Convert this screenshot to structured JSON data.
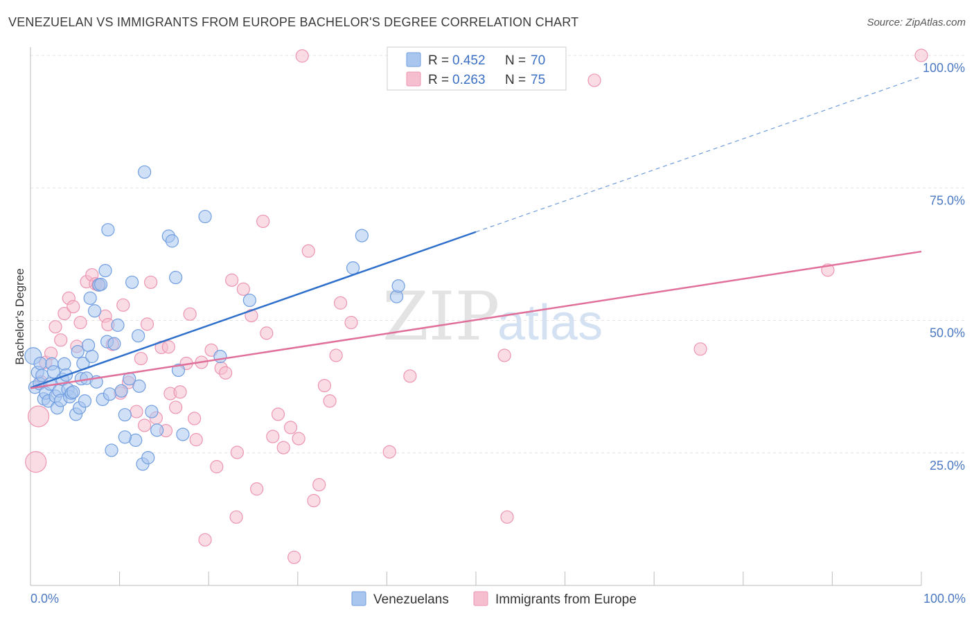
{
  "header": {
    "title": "VENEZUELAN VS IMMIGRANTS FROM EUROPE BACHELOR'S DEGREE CORRELATION CHART",
    "source": "Source: ZipAtlas.com"
  },
  "watermark": {
    "zip": "ZIP",
    "atlas": "atlas"
  },
  "legend_top": {
    "r_label": "R = ",
    "n_label": "N = ",
    "items": [
      {
        "r": "0.452",
        "n": "70"
      },
      {
        "r": "0.263",
        "n": "75"
      }
    ]
  },
  "legend_bottom": [
    "Venezuelans",
    "Immigrants from Europe"
  ],
  "colors": {
    "blue_fill": "#a9c6ee",
    "blue_stroke": "#6f9de0",
    "blue_line": "#2f6fcc",
    "pink_fill": "#f6bfd0",
    "pink_stroke": "#ec94b2",
    "pink_line": "#e0709a",
    "grid": "#e3e3e3",
    "tick_text": "#4a78c2"
  },
  "chart_data": {
    "type": "scatter",
    "ylabel": "Bachelor's Degree",
    "xlim": [
      0,
      100
    ],
    "ylim": [
      0,
      100
    ],
    "x_tick_labels": [
      "0.0%",
      "100.0%"
    ],
    "y_ticks": [
      {
        "value": 25,
        "label": "25.0%"
      },
      {
        "value": 50,
        "label": "50.0%"
      },
      {
        "value": 75,
        "label": "75.0%"
      },
      {
        "value": 100,
        "label": "100.0%"
      }
    ],
    "grid": "horizontal dashed",
    "series": [
      {
        "name": "Venezuelans",
        "r": 0.452,
        "n": 70,
        "trend": {
          "x": [
            0,
            50
          ],
          "y": [
            37.3,
            66.7
          ],
          "extend_to_x": 100,
          "extend_to_y": 96
        },
        "points": [
          [
            0.3,
            43.3
          ],
          [
            0.5,
            37.4
          ],
          [
            0.8,
            40.2
          ],
          [
            1.0,
            38.1
          ],
          [
            1.1,
            41.9
          ],
          [
            1.3,
            39.6
          ],
          [
            1.5,
            35.2
          ],
          [
            1.7,
            36.3
          ],
          [
            2.0,
            34.8
          ],
          [
            2.2,
            38.0
          ],
          [
            2.4,
            41.8
          ],
          [
            2.6,
            40.3
          ],
          [
            2.8,
            35.7
          ],
          [
            3.0,
            33.5
          ],
          [
            3.2,
            36.7
          ],
          [
            3.4,
            34.9
          ],
          [
            3.6,
            38.9
          ],
          [
            3.8,
            41.8
          ],
          [
            4.0,
            39.7
          ],
          [
            4.2,
            37.0
          ],
          [
            4.4,
            35.6
          ],
          [
            4.6,
            36.3
          ],
          [
            4.8,
            36.5
          ],
          [
            5.1,
            32.3
          ],
          [
            5.3,
            44.1
          ],
          [
            5.5,
            33.5
          ],
          [
            5.7,
            39.0
          ],
          [
            5.9,
            41.9
          ],
          [
            6.1,
            34.8
          ],
          [
            6.3,
            39.1
          ],
          [
            6.5,
            45.3
          ],
          [
            6.7,
            54.2
          ],
          [
            6.9,
            43.2
          ],
          [
            7.2,
            51.8
          ],
          [
            7.4,
            38.4
          ],
          [
            7.7,
            56.7
          ],
          [
            7.9,
            56.8
          ],
          [
            8.1,
            35.1
          ],
          [
            8.4,
            59.4
          ],
          [
            8.6,
            46.0
          ],
          [
            8.9,
            36.1
          ],
          [
            9.1,
            25.5
          ],
          [
            9.4,
            45.6
          ],
          [
            9.8,
            49.1
          ],
          [
            10.2,
            36.7
          ],
          [
            10.6,
            32.2
          ],
          [
            11.1,
            39.0
          ],
          [
            11.4,
            57.2
          ],
          [
            11.8,
            27.4
          ],
          [
            12.1,
            47.1
          ],
          [
            12.6,
            22.9
          ],
          [
            13.2,
            24.1
          ],
          [
            13.6,
            32.8
          ],
          [
            14.2,
            29.3
          ],
          [
            15.5,
            65.9
          ],
          [
            15.9,
            65.0
          ],
          [
            16.3,
            58.1
          ],
          [
            16.6,
            40.6
          ],
          [
            17.1,
            28.5
          ],
          [
            19.6,
            69.6
          ],
          [
            21.3,
            43.2
          ],
          [
            24.6,
            53.8
          ],
          [
            36.2,
            59.9
          ],
          [
            37.2,
            66.0
          ],
          [
            41.1,
            54.5
          ],
          [
            41.3,
            56.5
          ],
          [
            12.8,
            78.0
          ],
          [
            8.7,
            67.1
          ],
          [
            10.6,
            28.0
          ],
          [
            12.2,
            37.6
          ]
        ]
      },
      {
        "name": "Immigrants from Europe",
        "r": 0.263,
        "n": 75,
        "trend": {
          "x": [
            0,
            100
          ],
          "y": [
            37.2,
            63.0
          ]
        },
        "points": [
          [
            0.6,
            23.3
          ],
          [
            0.9,
            31.9
          ],
          [
            1.2,
            38.4
          ],
          [
            1.7,
            42.1
          ],
          [
            2.3,
            43.8
          ],
          [
            2.8,
            48.8
          ],
          [
            3.4,
            46.3
          ],
          [
            3.8,
            51.3
          ],
          [
            4.3,
            54.2
          ],
          [
            4.8,
            52.6
          ],
          [
            5.2,
            45.1
          ],
          [
            5.6,
            49.6
          ],
          [
            6.3,
            57.3
          ],
          [
            6.9,
            58.6
          ],
          [
            7.3,
            56.9
          ],
          [
            7.6,
            56.7
          ],
          [
            8.4,
            50.8
          ],
          [
            8.7,
            49.2
          ],
          [
            9.2,
            45.5
          ],
          [
            10.1,
            36.3
          ],
          [
            10.4,
            52.9
          ],
          [
            11.0,
            38.3
          ],
          [
            11.9,
            32.8
          ],
          [
            12.4,
            42.8
          ],
          [
            12.8,
            30.2
          ],
          [
            13.1,
            49.3
          ],
          [
            13.5,
            57.2
          ],
          [
            14.1,
            31.6
          ],
          [
            14.7,
            44.9
          ],
          [
            15.2,
            29.2
          ],
          [
            15.7,
            36.2
          ],
          [
            16.3,
            33.6
          ],
          [
            16.8,
            36.5
          ],
          [
            17.5,
            41.9
          ],
          [
            17.9,
            51.2
          ],
          [
            18.6,
            27.5
          ],
          [
            19.2,
            42.1
          ],
          [
            19.6,
            8.6
          ],
          [
            20.3,
            44.4
          ],
          [
            20.9,
            22.4
          ],
          [
            21.4,
            41.0
          ],
          [
            21.9,
            40.1
          ],
          [
            22.6,
            57.6
          ],
          [
            23.2,
            25.1
          ],
          [
            23.1,
            12.9
          ],
          [
            23.9,
            55.9
          ],
          [
            24.8,
            50.9
          ],
          [
            25.4,
            18.2
          ],
          [
            26.1,
            68.7
          ],
          [
            26.5,
            47.6
          ],
          [
            27.2,
            28.1
          ],
          [
            27.8,
            32.3
          ],
          [
            28.4,
            26.0
          ],
          [
            29.2,
            29.8
          ],
          [
            29.6,
            5.3
          ],
          [
            30.1,
            27.7
          ],
          [
            30.5,
            99.9
          ],
          [
            31.2,
            63.1
          ],
          [
            31.8,
            16.0
          ],
          [
            32.4,
            19.0
          ],
          [
            33.0,
            37.7
          ],
          [
            33.6,
            34.8
          ],
          [
            34.3,
            43.4
          ],
          [
            34.8,
            53.3
          ],
          [
            36.0,
            49.6
          ],
          [
            40.3,
            25.2
          ],
          [
            42.6,
            39.5
          ],
          [
            53.5,
            12.9
          ],
          [
            53.2,
            43.4
          ],
          [
            63.3,
            95.3
          ],
          [
            75.2,
            44.6
          ],
          [
            89.5,
            59.5
          ],
          [
            100.0,
            100.0
          ],
          [
            15.5,
            45.0
          ],
          [
            18.4,
            31.5
          ]
        ]
      }
    ]
  }
}
